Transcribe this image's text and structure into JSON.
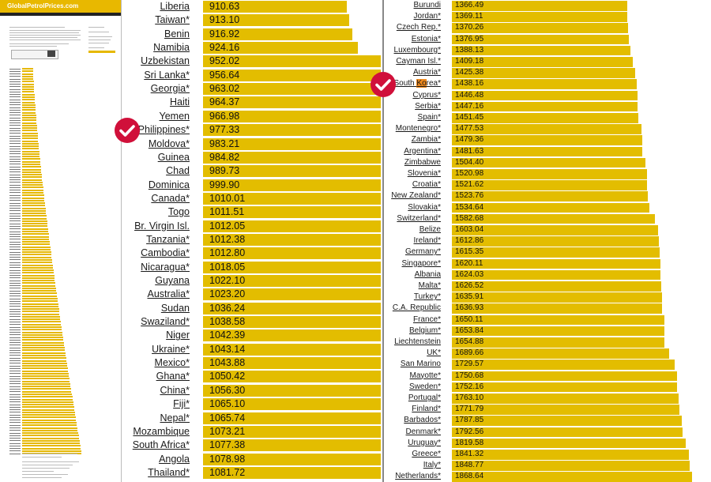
{
  "site": {
    "logo_text": "GlobalPetrolPrices.com"
  },
  "chart_data": [
    {
      "type": "bar",
      "orientation": "horizontal",
      "title": "",
      "unit": "",
      "categories": [
        "Liberia",
        "Taiwan*",
        "Benin",
        "Namibia",
        "Uzbekistan",
        "Sri Lanka*",
        "Georgia*",
        "Haiti",
        "Yemen",
        "Philippines*",
        "Moldova*",
        "Guinea",
        "Chad",
        "Dominica",
        "Canada*",
        "Togo",
        "Br. Virgin Isl.",
        "Tanzania*",
        "Cambodia*",
        "Nicaragua*",
        "Guyana",
        "Australia*",
        "Sudan",
        "Swaziland*",
        "Niger",
        "Ukraine*",
        "Mexico*",
        "Ghana*",
        "China*",
        "Fiji*",
        "Nepal*",
        "Mozambique",
        "South Africa*",
        "Angola",
        "Thailand*"
      ],
      "values": [
        910.63,
        913.1,
        916.92,
        924.16,
        952.02,
        956.64,
        963.02,
        964.37,
        966.98,
        977.33,
        983.21,
        984.82,
        989.73,
        999.9,
        1010.01,
        1011.51,
        1012.05,
        1012.38,
        1012.8,
        1018.05,
        1022.1,
        1023.2,
        1036.24,
        1038.58,
        1042.39,
        1043.14,
        1043.88,
        1050.42,
        1056.3,
        1065.1,
        1065.74,
        1073.21,
        1077.38,
        1078.98,
        1081.72
      ],
      "value_labels": [
        "910.63",
        "913.10",
        "916.92",
        "924.16",
        "952.02",
        "956.64",
        "963.02",
        "964.37",
        "966.98",
        "977.33",
        "983.21",
        "984.82",
        "989.73",
        "999.90",
        "1010.01",
        "1011.51",
        "1012.05",
        "1012.38",
        "1012.80",
        "1018.05",
        "1022.10",
        "1023.20",
        "1036.24",
        "1038.58",
        "1042.39",
        "1043.14",
        "1043.88",
        "1050.42",
        "1056.30",
        "1065.10",
        "1065.74",
        "1073.21",
        "1077.38",
        "1078.98",
        "1081.72"
      ],
      "checked": [
        "Philippines*"
      ],
      "highlight": {
        "category": "",
        "text": ""
      }
    },
    {
      "type": "bar",
      "orientation": "horizontal",
      "title": "",
      "unit": "",
      "categories": [
        "Burundi",
        "Jordan*",
        "Czech Rep.*",
        "Estonia*",
        "Luxembourg*",
        "Cayman Isl.*",
        "Austria*",
        "South Korea*",
        "Cyprus*",
        "Serbia*",
        "Spain*",
        "Montenegro*",
        "Zambia*",
        "Argentina*",
        "Zimbabwe",
        "Slovenia*",
        "Croatia*",
        "New Zealand*",
        "Slovakia*",
        "Switzerland*",
        "Belize",
        "Ireland*",
        "Germany*",
        "Singapore*",
        "Albania",
        "Malta*",
        "Turkey*",
        "C.A. Republic",
        "France*",
        "Belgium*",
        "Liechtenstein",
        "UK*",
        "San Marino",
        "Mayotte*",
        "Sweden*",
        "Portugal*",
        "Finland*",
        "Barbados*",
        "Denmark*",
        "Uruguay*",
        "Greece*",
        "Italy*",
        "Netherlands*"
      ],
      "values": [
        1366.49,
        1369.11,
        1370.26,
        1376.95,
        1388.13,
        1409.18,
        1425.38,
        1438.16,
        1446.48,
        1447.16,
        1451.45,
        1477.53,
        1479.36,
        1481.63,
        1504.4,
        1520.98,
        1521.62,
        1523.76,
        1534.64,
        1582.68,
        1603.04,
        1612.86,
        1615.35,
        1620.11,
        1624.03,
        1626.52,
        1635.91,
        1636.93,
        1650.11,
        1653.84,
        1654.88,
        1689.66,
        1729.57,
        1750.68,
        1752.16,
        1763.1,
        1771.79,
        1787.85,
        1792.56,
        1819.58,
        1841.32,
        1848.77,
        1868.64
      ],
      "value_labels": [
        "1366.49",
        "1369.11",
        "1370.26",
        "1376.95",
        "1388.13",
        "1409.18",
        "1425.38",
        "1438.16",
        "1446.48",
        "1447.16",
        "1451.45",
        "1477.53",
        "1479.36",
        "1481.63",
        "1504.40",
        "1520.98",
        "1521.62",
        "1523.76",
        "1534.64",
        "1582.68",
        "1603.04",
        "1612.86",
        "1615.35",
        "1620.11",
        "1624.03",
        "1626.52",
        "1635.91",
        "1636.93",
        "1650.11",
        "1653.84",
        "1654.88",
        "1689.66",
        "1729.57",
        "1750.68",
        "1752.16",
        "1763.10",
        "1771.79",
        "1787.85",
        "1792.56",
        "1819.58",
        "1841.32",
        "1848.77",
        "1868.64"
      ],
      "checked": [
        "South Korea*"
      ],
      "highlight": {
        "category": "South Korea*",
        "text": "Ko"
      }
    }
  ],
  "colors": {
    "bar": "#e3bd00",
    "check": "#d0103a",
    "highlight": "#f08a1e"
  }
}
